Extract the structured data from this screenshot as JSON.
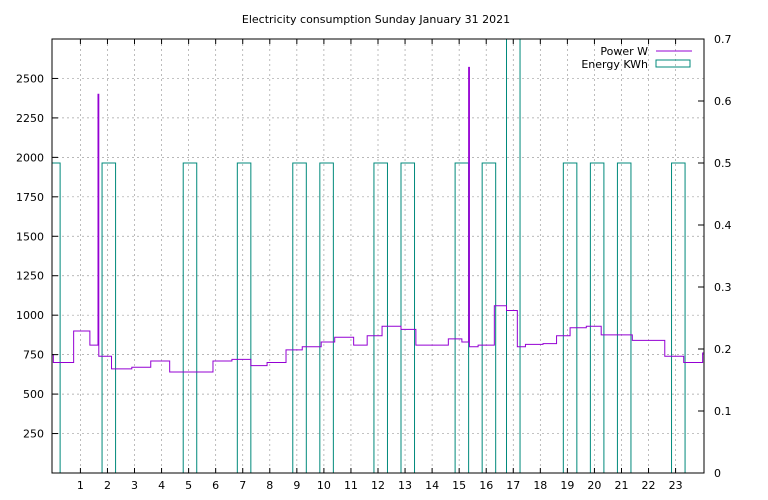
{
  "chart_data": {
    "type": "line",
    "title": "Electricity consumption Sunday January 31 2021",
    "x_ticks": [
      "1",
      "2",
      "3",
      "4",
      "5",
      "6",
      "7",
      "8",
      "9",
      "10",
      "11",
      "12",
      "13",
      "14",
      "15",
      "16",
      "17",
      "18",
      "19",
      "20",
      "21",
      "22",
      "23"
    ],
    "xlim": [
      -0.05,
      24.05
    ],
    "ylim_left": [
      0,
      2750
    ],
    "yticks_left": [
      250,
      500,
      750,
      1000,
      1250,
      1500,
      1750,
      2000,
      2250,
      2500
    ],
    "ylim_right": [
      0,
      0.7
    ],
    "yticks_right": [
      "0",
      "0.1",
      "0.2",
      "0.3",
      "0.4",
      "0.5",
      "0.6",
      "0.7"
    ],
    "grid": true,
    "legend_position": "top-right",
    "series": [
      {
        "name": "Power W",
        "color": "#9400d3",
        "axis": "left",
        "style": "steps",
        "points": [
          [
            -0.05,
            750
          ],
          [
            0,
            700
          ],
          [
            0.75,
            900
          ],
          [
            1.35,
            810
          ],
          [
            1.65,
            2400
          ],
          [
            1.68,
            740
          ],
          [
            2.15,
            660
          ],
          [
            2.9,
            670
          ],
          [
            3.6,
            710
          ],
          [
            4.3,
            640
          ],
          [
            5.9,
            710
          ],
          [
            6.6,
            720
          ],
          [
            7.3,
            680
          ],
          [
            7.9,
            700
          ],
          [
            8.6,
            780
          ],
          [
            9.2,
            800
          ],
          [
            9.9,
            830
          ],
          [
            10.4,
            860
          ],
          [
            11.1,
            810
          ],
          [
            11.6,
            870
          ],
          [
            12.15,
            930
          ],
          [
            12.85,
            910
          ],
          [
            13.4,
            810
          ],
          [
            14.6,
            850
          ],
          [
            15.1,
            830
          ],
          [
            15.35,
            2570
          ],
          [
            15.38,
            800
          ],
          [
            15.7,
            810
          ],
          [
            16.3,
            1060
          ],
          [
            16.75,
            1030
          ],
          [
            17.15,
            800
          ],
          [
            17.45,
            815
          ],
          [
            18.1,
            820
          ],
          [
            18.6,
            870
          ],
          [
            19.1,
            920
          ],
          [
            19.7,
            930
          ],
          [
            20.25,
            875
          ],
          [
            21.4,
            840
          ],
          [
            22.6,
            740
          ],
          [
            23.3,
            700
          ],
          [
            24.0,
            760
          ]
        ]
      },
      {
        "name": "Energy KWh",
        "color": "#00897b",
        "axis": "right",
        "style": "pulses",
        "bars": [
          [
            0,
            0.5
          ],
          [
            1.8,
            2.3,
            0.5
          ],
          [
            4.8,
            5.3,
            0.5
          ],
          [
            6.8,
            7.3,
            0.5
          ],
          [
            8.85,
            9.35,
            0.5
          ],
          [
            9.85,
            10.35,
            0.5
          ],
          [
            11.85,
            12.35,
            0.5
          ],
          [
            12.85,
            13.35,
            0.5
          ],
          [
            14.85,
            15.35,
            0.5
          ],
          [
            15.85,
            16.35,
            0.5
          ],
          [
            16.75,
            17.25,
            0.75
          ],
          [
            18.85,
            19.35,
            0.5
          ],
          [
            19.85,
            20.35,
            0.5
          ],
          [
            20.85,
            21.35,
            0.5
          ],
          [
            22.85,
            23.35,
            0.5
          ]
        ]
      }
    ]
  }
}
